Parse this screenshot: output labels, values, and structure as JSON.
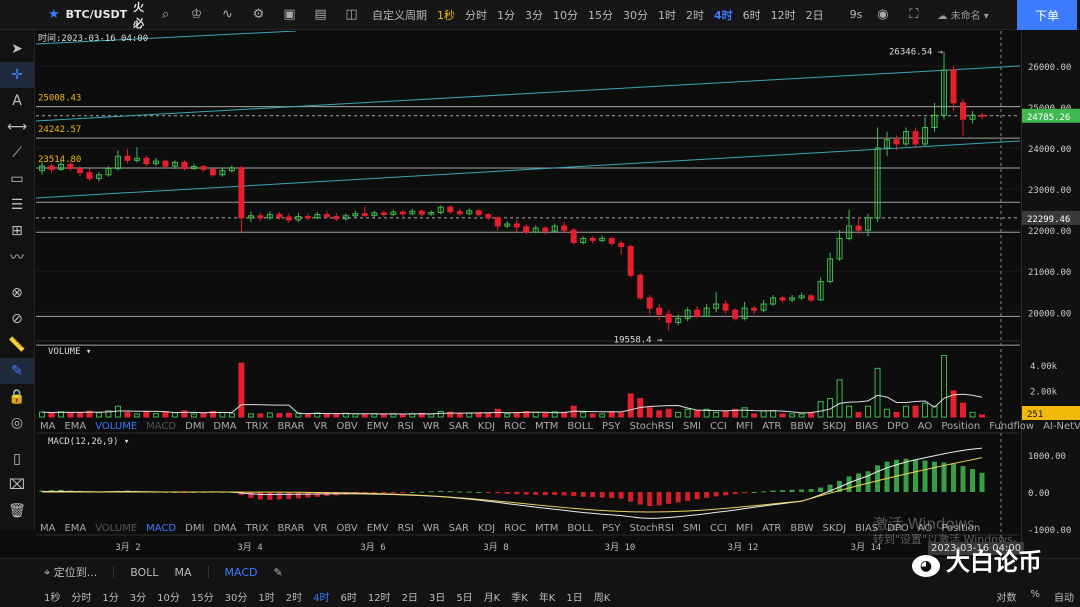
{
  "toolbar": {
    "symbol": "BTC/USDT",
    "exchange": "火必",
    "period_menu": "自定义周期",
    "timeframes": [
      "1秒",
      "分时",
      "1分",
      "3分",
      "10分",
      "15分",
      "30分",
      "1时",
      "2时",
      "4时",
      "6时",
      "12时",
      "2日"
    ],
    "active_tf": "1秒",
    "period_active": "4时",
    "seconds": "9s",
    "layout_name": "未命名",
    "order_button": "下单"
  },
  "chart": {
    "time_label": "时间:2023-03-16 04:00",
    "price_labels": [
      {
        "text": "25008.43",
        "price": 25008.43
      },
      {
        "text": "24242.57",
        "price": 24242.57
      },
      {
        "text": "23514.80",
        "price": 23514.8
      }
    ],
    "high_label": "26346.54",
    "low_label": "19558.4",
    "axis_ticks": [
      "26000.00",
      "25000.00",
      "24000.00",
      "23000.00",
      "22000.00",
      "21000.00",
      "20000.00"
    ],
    "last_price": "24785.26",
    "cursor_price": "22299.46",
    "x_labels": [
      "3月 2",
      "3月 4",
      "3月 6",
      "3月 8",
      "3月 10",
      "3月 12",
      "3月 14"
    ]
  },
  "volume": {
    "title": "VOLUME",
    "axis_ticks": [
      "4.00k",
      "2.00k"
    ],
    "last": "251"
  },
  "macd": {
    "title": "MACD(12,26,9)",
    "axis_ticks": [
      "1000.00",
      "0.00",
      "-1000.00"
    ]
  },
  "indicators_row1": [
    "MA",
    "EMA",
    "VOLUME",
    "MACD",
    "DMI",
    "DMA",
    "TRIX",
    "BRAR",
    "VR",
    "OBV",
    "EMV",
    "RSI",
    "WR",
    "SAR",
    "KDJ",
    "ROC",
    "MTM",
    "BOLL",
    "PSY",
    "StochRSI",
    "SMI",
    "CCI",
    "MFI",
    "ATR",
    "BBW",
    "SKDJ",
    "BIAS",
    "DPO",
    "AO",
    "Position",
    "Fundflow",
    "AI-NetVOL"
  ],
  "indicators_row2": [
    "MA",
    "EMA",
    "VOLUME",
    "MACD",
    "DMI",
    "DMA",
    "TRIX",
    "BRAR",
    "VR",
    "OBV",
    "EMV",
    "RSI",
    "WR",
    "SAR",
    "KDJ",
    "ROC",
    "MTM",
    "BOLL",
    "PSY",
    "StochRSI",
    "SMI",
    "CCI",
    "MFI",
    "ATR",
    "BBW",
    "SKDJ",
    "BIAS",
    "DPO",
    "AO",
    "Position"
  ],
  "bottom": {
    "locate": "定位到...",
    "main_inds": [
      "BOLL",
      "MA"
    ],
    "sub_ind": "MACD",
    "periods": [
      "1秒",
      "分时",
      "1分",
      "3分",
      "10分",
      "15分",
      "30分",
      "1时",
      "2时",
      "4时",
      "6时",
      "12时",
      "2日",
      "3日",
      "5日",
      "月K",
      "季K",
      "年K",
      "1日",
      "周K"
    ],
    "active_period": "4时",
    "right": [
      "对数",
      "%",
      "自动"
    ],
    "watermark1": "激活 Windows",
    "watermark2": "转到\"设置\"以激活 Windows。",
    "date_overlay": "2023-03-16 04:00",
    "brand": "大白论币"
  },
  "colors": {
    "up": "#3fb950",
    "down": "#e5202e",
    "accent": "#3d7bfd",
    "highlight": "#f0b90b"
  }
}
